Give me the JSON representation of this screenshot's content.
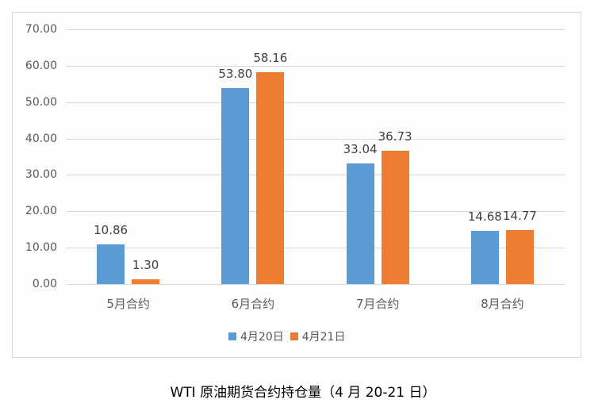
{
  "chart_data": {
    "type": "bar",
    "title": "WTI 原油期货合约持仓量（4 月 20-21 日）",
    "xlabel": "",
    "ylabel": "",
    "ylim": [
      0,
      70
    ],
    "yticks": [
      "0.00",
      "10.00",
      "20.00",
      "30.00",
      "40.00",
      "50.00",
      "60.00",
      "70.00"
    ],
    "grid": true,
    "legend_position": "bottom",
    "categories": [
      "5月合约",
      "6月合约",
      "7月合约",
      "8月合约"
    ],
    "series": [
      {
        "name": "4月20日",
        "color": "#5b9bd5",
        "values": [
          10.86,
          53.8,
          33.04,
          14.68
        ],
        "labels": [
          "10.86",
          "53.80",
          "33.04",
          "14.68"
        ]
      },
      {
        "name": "4月21日",
        "color": "#ed7d31",
        "values": [
          1.3,
          58.16,
          36.73,
          14.77
        ],
        "labels": [
          "1.30",
          "58.16",
          "36.73",
          "14.77"
        ]
      }
    ]
  },
  "caption": "WTI 原油期货合约持仓量（4 月 20-21 日）"
}
